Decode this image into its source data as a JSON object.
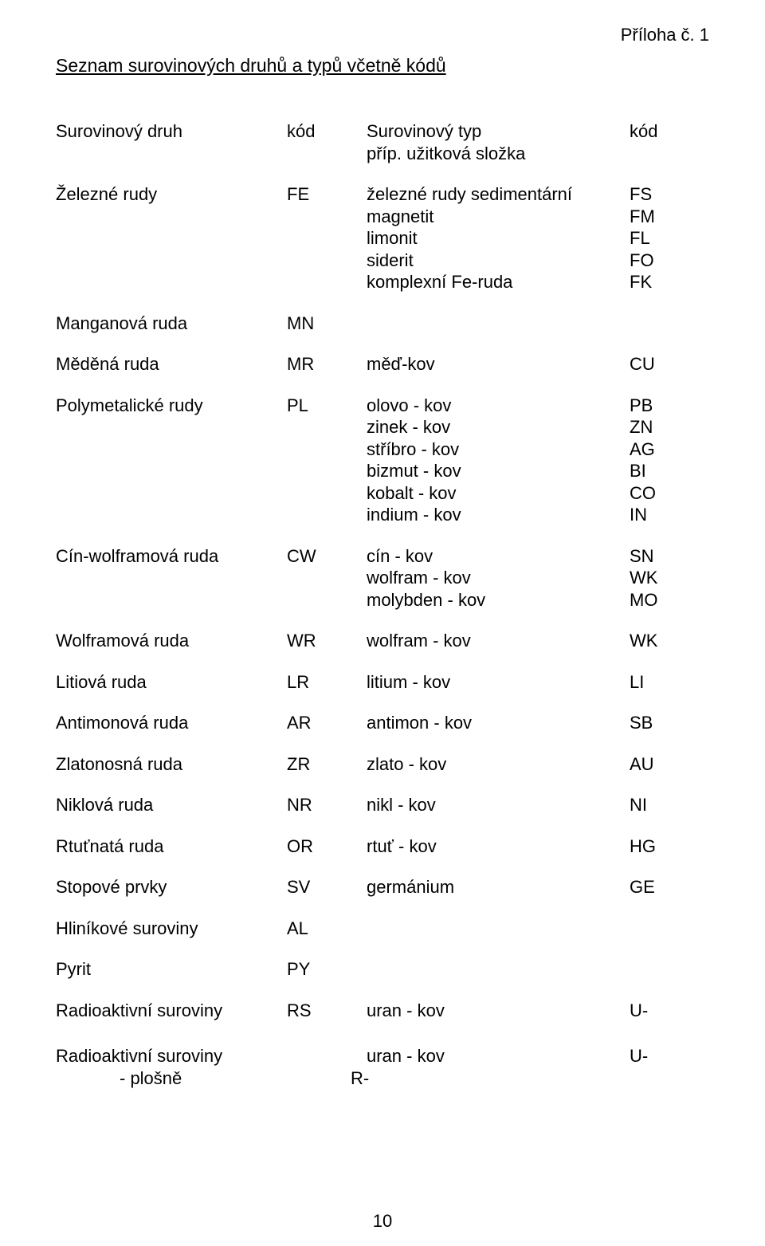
{
  "appendix": "Příloha č. 1",
  "main_title": "Seznam surovinových druhů a typů včetně kódů",
  "header": {
    "c1": "Surovinový druh",
    "c2": "kód",
    "c3a": "Surovinový typ",
    "c3b": "příp. užitková složka",
    "c4": "kód"
  },
  "groups": [
    {
      "druh": "Železné rudy",
      "kod": "FE",
      "items": [
        {
          "typ": "železné rudy sedimentární",
          "k": "FS"
        },
        {
          "typ": "magnetit",
          "k": "FM"
        },
        {
          "typ": "limonit",
          "k": "FL"
        },
        {
          "typ": "siderit",
          "k": "FO"
        },
        {
          "typ": "komplexní Fe-ruda",
          "k": "FK"
        }
      ]
    },
    {
      "druh": "Manganová ruda",
      "kod": "MN",
      "items": []
    },
    {
      "druh": "Měděná ruda",
      "kod": "MR",
      "items": [
        {
          "typ": "měď-kov",
          "k": "CU"
        }
      ]
    },
    {
      "druh": "Polymetalické rudy",
      "kod": "PL",
      "items": [
        {
          "typ": "olovo - kov",
          "k": "PB"
        },
        {
          "typ": "zinek - kov",
          "k": "ZN"
        },
        {
          "typ": "stříbro - kov",
          "k": "AG"
        },
        {
          "typ": "bizmut - kov",
          "k": "BI"
        },
        {
          "typ": "kobalt - kov",
          "k": "CO"
        },
        {
          "typ": "indium - kov",
          "k": "IN"
        }
      ]
    },
    {
      "druh": "Cín-wolframová ruda",
      "kod": "CW",
      "items": [
        {
          "typ": "cín - kov",
          "k": "SN"
        },
        {
          "typ": "wolfram - kov",
          "k": "WK"
        },
        {
          "typ": "molybden - kov",
          "k": "MO"
        }
      ]
    },
    {
      "druh": "Wolframová ruda",
      "kod": "WR",
      "items": [
        {
          "typ": "wolfram - kov",
          "k": "WK"
        }
      ]
    },
    {
      "druh": "Litiová ruda",
      "kod": "LR",
      "items": [
        {
          "typ": "litium - kov",
          "k": "LI"
        }
      ]
    },
    {
      "druh": "Antimonová ruda",
      "kod": "AR",
      "items": [
        {
          "typ": "antimon - kov",
          "k": "SB"
        }
      ]
    },
    {
      "druh": "Zlatonosná ruda",
      "kod": "ZR",
      "items": [
        {
          "typ": "zlato - kov",
          "k": "AU"
        }
      ]
    },
    {
      "druh": "Niklová ruda",
      "kod": "NR",
      "items": [
        {
          "typ": "nikl - kov",
          "k": "NI"
        }
      ]
    },
    {
      "druh": "Rtuťnatá ruda",
      "kod": "OR",
      "items": [
        {
          "typ": "rtuť - kov",
          "k": "HG"
        }
      ]
    },
    {
      "druh": "Stopové prvky",
      "kod": "SV",
      "items": [
        {
          "typ": "germánium",
          "k": "GE"
        }
      ]
    },
    {
      "druh": "Hliníkové suroviny",
      "kod": "AL",
      "items": []
    },
    {
      "druh": "Pyrit",
      "kod": "PY",
      "items": []
    },
    {
      "druh": "Radioaktivní suroviny",
      "kod": "RS",
      "items": [
        {
          "typ": "uran - kov",
          "k": "U-"
        }
      ]
    }
  ],
  "footer_group": {
    "druh": "Radioaktivní suroviny",
    "sub": "- plošně",
    "kod": "R-",
    "typ": "uran - kov",
    "k": "U-"
  },
  "page_number": "10"
}
